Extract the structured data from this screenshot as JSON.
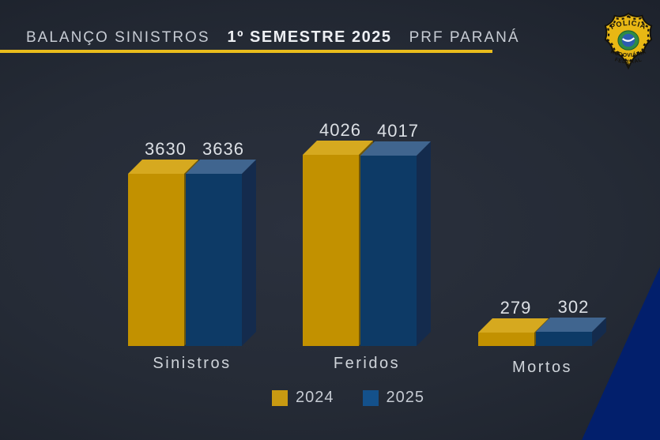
{
  "header": {
    "title_part1": "BALANÇO SINISTROS",
    "title_part2": "1º SEMESTRE 2025",
    "title_part3": "PRF PARANÁ"
  },
  "badge": {
    "top_text": "POLICIA",
    "middle_text": "RODOVIÁRIA",
    "bottom_text": "FEDERAL"
  },
  "chart_data": {
    "type": "bar",
    "style": "3d-grouped-columns",
    "title": "BALANÇO SINISTROS 1º SEMESTRE 2025 PRF PARANÁ",
    "categories": [
      "Sinistros",
      "Feridos",
      "Mortos"
    ],
    "series": [
      {
        "name": "2024",
        "color": "#C29100",
        "values": [
          3630,
          4026,
          279
        ]
      },
      {
        "name": "2025",
        "color": "#0D3A66",
        "values": [
          3636,
          4017,
          302
        ]
      }
    ],
    "value_labels_visible": true,
    "legend_position": "bottom-center",
    "grid": false,
    "ylim": [
      0,
      4300
    ]
  },
  "legend": {
    "items": [
      {
        "label": "2024",
        "color": "#C89A12"
      },
      {
        "label": "2025",
        "color": "#14518B"
      }
    ]
  },
  "colors": {
    "accent_rule": "#E9BC1C",
    "corner_wedge": "#021F6C",
    "background_center": "#2B313E",
    "background_edge": "#171B24",
    "value_label_text": "#DCE0E5",
    "category_label_text": "#CFD4DA"
  }
}
